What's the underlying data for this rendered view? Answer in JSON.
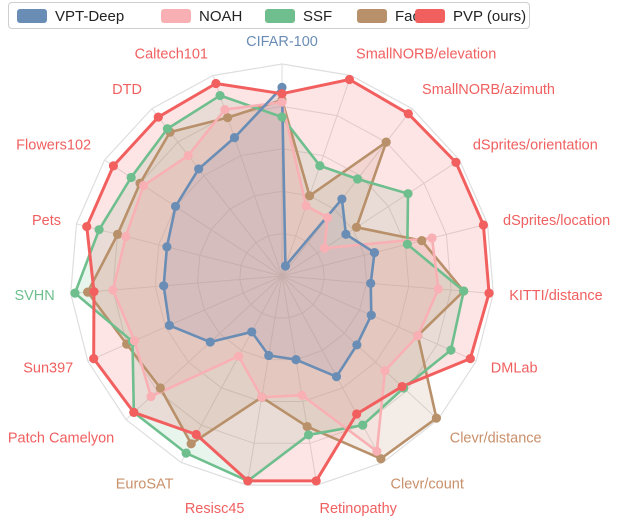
{
  "chart_data": {
    "type": "radar",
    "title": "",
    "legend_position": "top",
    "categories": [
      "CIFAR-100",
      "SmallNORB/elevation",
      "SmallNORB/azimuth",
      "dSprites/orientation",
      "dSprites/location",
      "KITTI/distance",
      "DMLab",
      "Clevr/distance",
      "Clevr/count",
      "Retinopathy",
      "Resisc45",
      "EuroSAT",
      "Patch Camelyon",
      "Sun397",
      "SVHN",
      "Pets",
      "Flowers102",
      "DTD",
      "Caltech101"
    ],
    "category_colors": [
      "#6a8db5",
      "#f06060",
      "#f06060",
      "#f06060",
      "#f06060",
      "#f06060",
      "#f06060",
      "#c9906a",
      "#c9906a",
      "#f06060",
      "#f06060",
      "#c9906a",
      "#f06060",
      "#f06060",
      "#6fbf8e",
      "#f06060",
      "#f06060",
      "#f06060",
      "#f06060"
    ],
    "radial_range": [
      0,
      1
    ],
    "grid": true,
    "series": [
      {
        "name": "VPT-Deep",
        "color": "#6a8db5",
        "values": [
          0.89,
          0.05,
          0.46,
          0.36,
          0.45,
          0.42,
          0.46,
          0.48,
          0.54,
          0.4,
          0.38,
          0.3,
          0.46,
          0.58,
          0.56,
          0.56,
          0.6,
          0.64,
          0.69
        ]
      },
      {
        "name": "NOAH",
        "color": "#f9b0b4",
        "values": [
          0.82,
          0.35,
          0.35,
          0.24,
          0.73,
          0.74,
          0.7,
          0.66,
          0.94,
          0.57,
          0.58,
          0.43,
          0.84,
          0.76,
          0.8,
          0.76,
          0.78,
          0.72,
          0.83
        ]
      },
      {
        "name": "SSF",
        "color": "#6fbf8e",
        "values": [
          0.75,
          0.55,
          0.58,
          0.71,
          0.61,
          0.86,
          0.87,
          0.78,
          0.8,
          0.76,
          0.98,
          0.95,
          0.95,
          0.77,
          0.98,
          0.89,
          0.85,
          0.88,
          0.9
        ]
      },
      {
        "name": "FacT",
        "color": "#b8906a",
        "values": [
          0.83,
          0.4,
          0.8,
          0.42,
          0.68,
          0.86,
          0.7,
          0.99,
          0.98,
          0.72,
          0.58,
          0.9,
          0.78,
          0.8,
          0.92,
          0.8,
          0.8,
          0.86,
          0.79
        ]
      },
      {
        "name": "PVP (ours)",
        "color": "#f25f5f",
        "values": [
          0.86,
          0.98,
          0.97,
          0.98,
          0.98,
          0.98,
          0.97,
          0.77,
          0.74,
          0.98,
          0.98,
          0.85,
          0.95,
          0.97,
          0.89,
          0.95,
          0.95,
          0.95,
          0.96
        ]
      }
    ]
  }
}
